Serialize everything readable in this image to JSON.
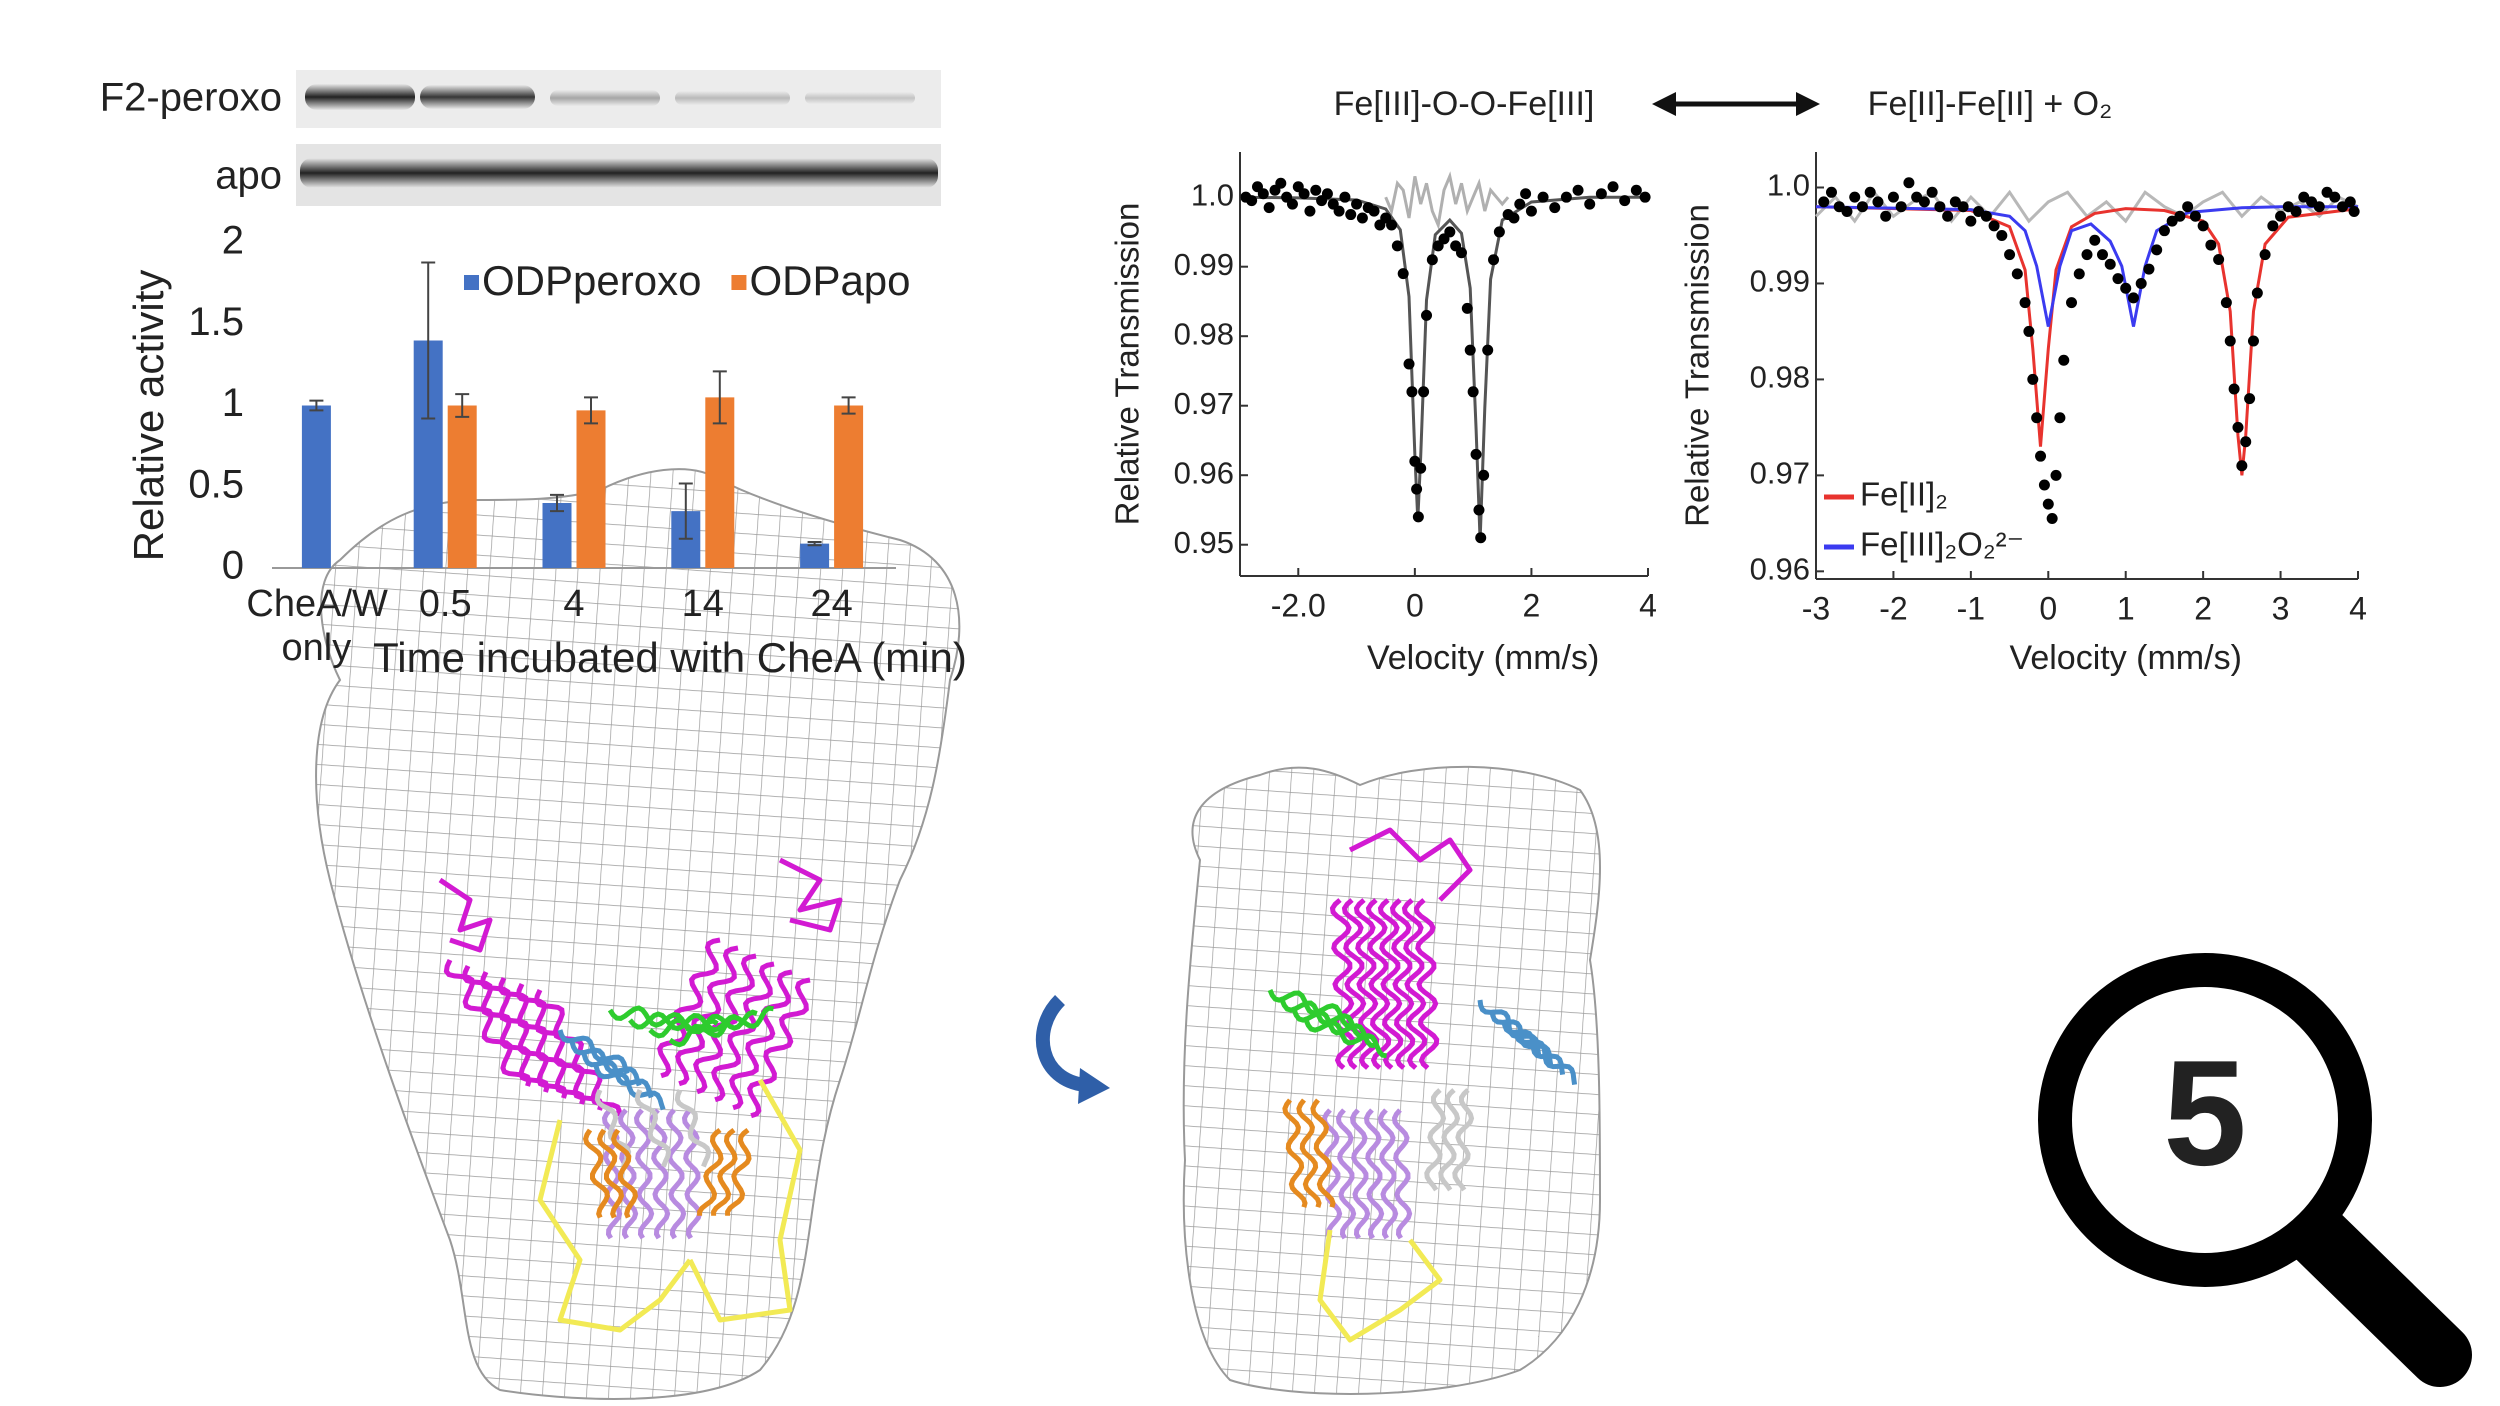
{
  "blots": {
    "labels": [
      "F2-peroxo",
      "apo"
    ]
  },
  "reaction": {
    "left": "Fe[III]-O-O-Fe[III]",
    "right": "Fe[II]-Fe[II] + O₂"
  },
  "badge": "5",
  "chart_data": [
    {
      "type": "bar",
      "ylabel": "Relative activity",
      "xlabel": "Time incubated with CheA (min)",
      "categories": [
        "CheA/W only",
        "0.5",
        "4",
        "14",
        "24"
      ],
      "series": [
        {
          "name": "ODPperoxo",
          "color": "#4472c4",
          "values": [
            1.0,
            1.4,
            0.4,
            0.35,
            0.15
          ],
          "errors": [
            0.03,
            0.48,
            0.05,
            0.17,
            0.01
          ]
        },
        {
          "name": "ODPapo",
          "color": "#ed7d31",
          "values": [
            null,
            1.0,
            0.97,
            1.05,
            1.0
          ],
          "errors": [
            null,
            0.07,
            0.08,
            0.16,
            0.05
          ]
        }
      ],
      "ylim": [
        0,
        2
      ],
      "yticks": [
        0,
        0.5,
        1,
        1.5,
        2
      ],
      "legend": "upper right"
    },
    {
      "type": "scatter",
      "xlabel": "Velocity (mm/s)",
      "ylabel": "Relative Transmission",
      "xlim": [
        -3,
        4
      ],
      "xticks": [
        {
          "value": -2,
          "label": "-2.0"
        },
        0,
        2,
        4
      ],
      "ylim": [
        0.9455,
        1.0065
      ],
      "yticks": [
        {
          "value": 1,
          "label": "1.0"
        },
        0.99,
        0.98,
        0.97,
        0.96,
        0.95
      ],
      "series": [
        {
          "mode": "lines",
          "color": "#b0b0b0",
          "x": [
            -0.5,
            -0.4,
            -0.3,
            -0.2,
            -0.1,
            0,
            0.1,
            0.2,
            0.3,
            0.4,
            0.5,
            0.6,
            0.7,
            0.8,
            0.9,
            1.0,
            1.1,
            1.2,
            1.3,
            1.4,
            1.5,
            1.6
          ],
          "values": [
            1.0,
            0.998,
            1.002,
            1.001,
            0.997,
            1.003,
            0.999,
            1.002,
            0.998,
            0.996,
            1.001,
            1.003,
            0.999,
            1.002,
            0.998,
            1.0,
            1.002,
            0.998,
            1.001,
            1.0,
            0.999,
            1.0
          ]
        },
        {
          "mode": "lines",
          "color": "#555555",
          "x": [
            -3,
            -2,
            -1,
            -0.5,
            -0.25,
            -0.1,
            0,
            0.05,
            0.1,
            0.2,
            0.35,
            0.6,
            0.8,
            0.95,
            1.05,
            1.12,
            1.2,
            1.3,
            1.5,
            2,
            3,
            4
          ],
          "values": [
            1.0,
            0.9999,
            0.9996,
            0.9983,
            0.9953,
            0.9857,
            0.9628,
            0.9536,
            0.9627,
            0.9852,
            0.9946,
            0.9967,
            0.9948,
            0.9869,
            0.9666,
            0.9506,
            0.9697,
            0.9882,
            0.9967,
            0.9993,
            1.0,
            1.0
          ]
        },
        {
          "mode": "markers",
          "color": "#000000",
          "x": [
            -2.9,
            -2.8,
            -2.7,
            -2.6,
            -2.5,
            -2.4,
            -2.3,
            -2.2,
            -2.1,
            -2.0,
            -1.9,
            -1.8,
            -1.7,
            -1.6,
            -1.5,
            -1.4,
            -1.3,
            -1.2,
            -1.1,
            -1.0,
            -0.9,
            -0.8,
            -0.7,
            -0.6,
            -0.5,
            -0.4,
            -0.3,
            -0.2,
            -0.1,
            -0.05,
            0,
            0.03,
            0.06,
            0.1,
            0.15,
            0.2,
            0.3,
            0.4,
            0.5,
            0.6,
            0.7,
            0.8,
            0.9,
            0.95,
            1.0,
            1.05,
            1.1,
            1.13,
            1.18,
            1.25,
            1.35,
            1.45,
            1.6,
            1.7,
            1.8,
            1.9,
            2.0,
            2.2,
            2.4,
            2.6,
            2.8,
            3.0,
            3.2,
            3.4,
            3.6,
            3.8,
            3.95
          ],
          "values": [
            1.0,
            0.9995,
            1.0015,
            1.0005,
            0.9985,
            1.001,
            1.002,
            1.0,
            0.999,
            1.0015,
            1.0005,
            0.998,
            1.001,
            0.9995,
            1.0005,
            0.999,
            0.998,
            1.0,
            0.9975,
            0.999,
            0.997,
            0.9985,
            0.998,
            0.996,
            0.997,
            0.996,
            0.993,
            0.989,
            0.976,
            0.972,
            0.962,
            0.958,
            0.954,
            0.961,
            0.972,
            0.983,
            0.991,
            0.993,
            0.994,
            0.995,
            0.993,
            0.992,
            0.984,
            0.978,
            0.972,
            0.963,
            0.955,
            0.951,
            0.96,
            0.978,
            0.991,
            0.995,
            0.9975,
            0.997,
            0.999,
            1.0005,
            0.998,
            1.0,
            0.9985,
            1.0,
            1.001,
            0.999,
            1.0005,
            1.0015,
            0.9995,
            1.001,
            1.0
          ]
        }
      ]
    },
    {
      "type": "scatter",
      "xlabel": "Velocity (mm/s)",
      "ylabel": "Relative Transmission",
      "xlim": [
        -3,
        4
      ],
      "xticks": [
        -3,
        -2,
        -1,
        0,
        1,
        2,
        3,
        4
      ],
      "ylim": [
        0.9592,
        1.0037
      ],
      "yticks": [
        {
          "value": 1,
          "label": "1.0"
        },
        0.99,
        0.98,
        0.97,
        0.96
      ],
      "legend": "lower left",
      "series": [
        {
          "mode": "lines",
          "color": "#b8b8b8",
          "x": [
            -3,
            -2.75,
            -2.5,
            -2.25,
            -2,
            -1.75,
            -1.5,
            -1.25,
            -1,
            -0.75,
            -0.5,
            -0.25,
            0,
            0.25,
            0.5,
            0.75,
            1,
            1.25,
            1.5,
            1.75,
            2,
            2.25,
            2.5,
            2.75,
            3,
            3.25,
            3.5,
            3.75,
            4
          ],
          "values": [
            0.997,
            0.999,
            0.9965,
            0.9995,
            0.997,
            0.9985,
            0.9995,
            0.9965,
            0.999,
            0.997,
            0.9995,
            0.9965,
            0.9985,
            0.9995,
            0.997,
            0.9985,
            0.9965,
            0.9995,
            0.998,
            0.997,
            0.9985,
            0.9995,
            0.997,
            0.999,
            0.9975,
            0.9985,
            0.997,
            0.999,
            0.998
          ]
        },
        {
          "name": "Fe[II]₂",
          "mode": "lines",
          "color": "#e8332e",
          "x": [
            -3,
            -1,
            -0.5,
            -0.3,
            -0.2,
            -0.1,
            0,
            0.1,
            0.3,
            0.6,
            1,
            1.5,
            2,
            2.2,
            2.35,
            2.45,
            2.5,
            2.55,
            2.65,
            2.8,
            3.1,
            4
          ],
          "values": [
            0.998,
            0.9976,
            0.9959,
            0.9914,
            0.9832,
            0.973,
            0.9832,
            0.9914,
            0.9959,
            0.9973,
            0.9978,
            0.9976,
            0.9965,
            0.9941,
            0.9871,
            0.9741,
            0.97,
            0.9741,
            0.9871,
            0.9941,
            0.9969,
            0.9978
          ]
        },
        {
          "name": "Fe[III]₂O₂²⁻",
          "mode": "lines",
          "color": "#3b3bf0",
          "x": [
            -3,
            -1,
            -0.5,
            -0.3,
            -0.15,
            0,
            0.15,
            0.3,
            0.55,
            0.8,
            0.95,
            1.1,
            1.25,
            1.4,
            1.8,
            2.5,
            3,
            4
          ],
          "values": [
            0.998,
            0.9977,
            0.997,
            0.9955,
            0.9918,
            0.9855,
            0.9918,
            0.9955,
            0.9962,
            0.9944,
            0.9918,
            0.9855,
            0.9918,
            0.9955,
            0.9974,
            0.9979,
            0.998,
            0.998
          ]
        },
        {
          "mode": "markers",
          "color": "#000000",
          "x": [
            -2.9,
            -2.8,
            -2.7,
            -2.6,
            -2.5,
            -2.4,
            -2.3,
            -2.2,
            -2.1,
            -2.0,
            -1.9,
            -1.8,
            -1.7,
            -1.6,
            -1.5,
            -1.4,
            -1.3,
            -1.2,
            -1.1,
            -1.0,
            -0.9,
            -0.8,
            -0.7,
            -0.6,
            -0.5,
            -0.4,
            -0.3,
            -0.25,
            -0.2,
            -0.15,
            -0.1,
            -0.05,
            0,
            0.05,
            0.1,
            0.15,
            0.2,
            0.3,
            0.4,
            0.5,
            0.6,
            0.7,
            0.8,
            0.9,
            1.0,
            1.1,
            1.2,
            1.3,
            1.4,
            1.5,
            1.6,
            1.7,
            1.8,
            1.9,
            2.0,
            2.1,
            2.2,
            2.3,
            2.35,
            2.4,
            2.45,
            2.5,
            2.55,
            2.6,
            2.65,
            2.7,
            2.8,
            2.9,
            3.0,
            3.1,
            3.2,
            3.3,
            3.4,
            3.5,
            3.6,
            3.7,
            3.8,
            3.9,
            3.95
          ],
          "values": [
            0.9985,
            0.9995,
            0.998,
            0.9975,
            0.999,
            0.998,
            0.9995,
            0.9985,
            0.997,
            0.999,
            0.998,
            1.0005,
            0.999,
            0.9985,
            0.9995,
            0.998,
            0.997,
            0.9985,
            0.998,
            0.9965,
            0.9975,
            0.997,
            0.996,
            0.995,
            0.993,
            0.991,
            0.988,
            0.985,
            0.98,
            0.976,
            0.972,
            0.969,
            0.967,
            0.9655,
            0.97,
            0.976,
            0.982,
            0.988,
            0.991,
            0.993,
            0.9945,
            0.993,
            0.992,
            0.9905,
            0.9895,
            0.9885,
            0.99,
            0.9915,
            0.9935,
            0.9955,
            0.9965,
            0.997,
            0.998,
            0.997,
            0.996,
            0.994,
            0.9925,
            0.988,
            0.984,
            0.979,
            0.975,
            0.971,
            0.9735,
            0.978,
            0.984,
            0.989,
            0.993,
            0.996,
            0.997,
            0.998,
            0.9975,
            0.999,
            0.9985,
            0.998,
            0.9995,
            0.999,
            0.998,
            0.9985,
            0.9975
          ]
        }
      ]
    }
  ]
}
